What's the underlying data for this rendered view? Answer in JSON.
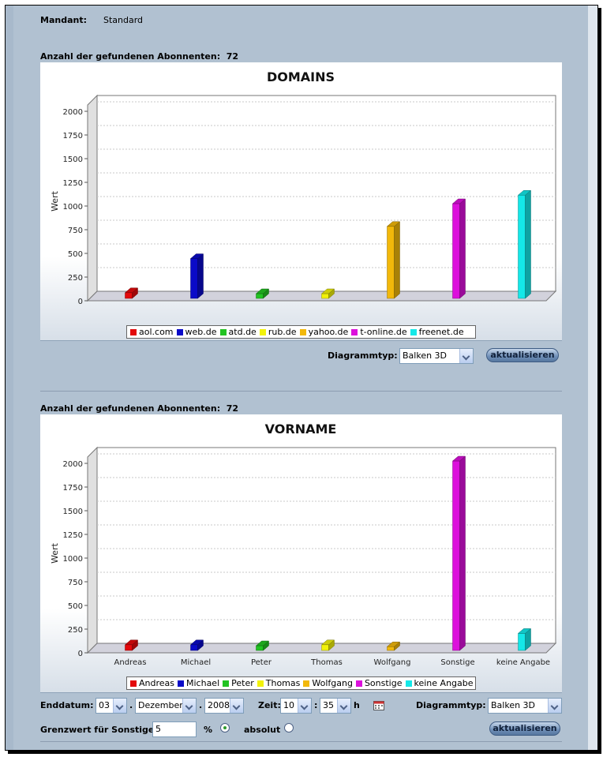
{
  "mandant": {
    "label": "Mandant:",
    "value": "Standard"
  },
  "colors": [
    "#e3090b",
    "#0a0ac8",
    "#22c322",
    "#f2f20a",
    "#f2b80a",
    "#dc10dc",
    "#14e8e8"
  ],
  "charts": [
    {
      "count_label": "Anzahl der gefundenen Abonnenten:",
      "count_value": "72",
      "chart_data": {
        "type": "bar",
        "title": "DOMAINS",
        "ylabel": "Wert",
        "xlabel": "",
        "ylim": [
          0,
          2000
        ],
        "yticks": [
          "0",
          "250",
          "500",
          "750",
          "1000",
          "1250",
          "1500",
          "1750",
          "2000"
        ],
        "show_category_labels": false,
        "categories": [
          "aol.com",
          "web.de",
          "atd.de",
          "rub.de",
          "yahoo.de",
          "t-online.de",
          "freenet.de"
        ],
        "values": [
          60,
          420,
          50,
          50,
          760,
          1000,
          1090
        ],
        "legend": [
          "aol.com",
          "web.de",
          "atd.de",
          "rub.de",
          "yahoo.de",
          "t-online.de",
          "freenet.de"
        ],
        "grid": true,
        "legend_position": "bottom"
      },
      "diagrammtyp_label": "Diagrammtyp:",
      "diagrammtyp_value": "Balken 3D",
      "refresh_label": "aktualisieren"
    },
    {
      "count_label": "Anzahl der gefundenen Abonnenten:",
      "count_value": "72",
      "chart_data": {
        "type": "bar",
        "title": "VORNAME",
        "ylabel": "Wert",
        "xlabel": "",
        "ylim": [
          0,
          2000
        ],
        "yticks": [
          "0",
          "250",
          "500",
          "750",
          "1000",
          "1250",
          "1500",
          "1750",
          "2000"
        ],
        "show_category_labels": true,
        "categories": [
          "Andreas",
          "Michael",
          "Peter",
          "Thomas",
          "Wolfgang",
          "Sonstige",
          "keine Angabe"
        ],
        "values": [
          60,
          60,
          50,
          60,
          40,
          2000,
          180
        ],
        "legend": [
          "Andreas",
          "Michael",
          "Peter",
          "Thomas",
          "Wolfgang",
          "Sonstige",
          "keine Angabe"
        ],
        "grid": true,
        "legend_position": "bottom"
      }
    }
  ],
  "controls": {
    "enddatum_label": "Enddatum:",
    "day": "03",
    "month": "Dezember",
    "year": "2008",
    "dot": ".",
    "zeit_label": "Zeit:",
    "hour": "10",
    "colon": ":",
    "minute": "35",
    "h_label": "h",
    "diagrammtyp_label": "Diagrammtyp:",
    "diagrammtyp_value": "Balken 3D",
    "grenzwert_label": "Grenzwert für Sonstige:",
    "grenzwert_value": "5",
    "percent_label": "%",
    "absolut_label": "absolut",
    "refresh_label": "aktualisieren"
  }
}
